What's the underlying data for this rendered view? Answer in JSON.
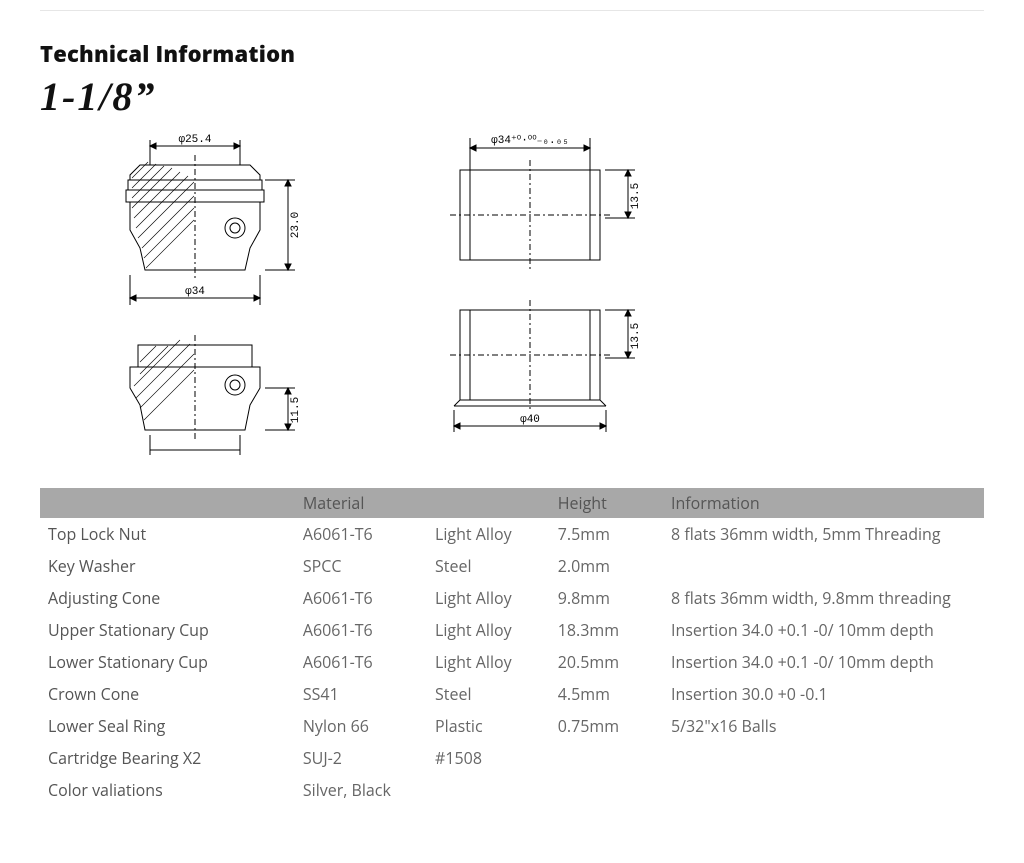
{
  "section_title": "Technical Information",
  "product_size": "1-1/8”",
  "diagram_left": {
    "top_width_label": "φ25.4",
    "right_height_label": "23.0",
    "mid_width_label": "φ34",
    "lower_right_label": "11.5"
  },
  "diagram_right": {
    "top_width_label": "φ34⁺⁰·⁰⁰₋₀.₀₅",
    "upper_right_label": "13.5",
    "lower_right_label": "13.5",
    "bottom_width_label": "φ40"
  },
  "spec_table": {
    "headers": [
      "",
      "Material",
      "",
      "Height",
      "Information"
    ],
    "rows": [
      [
        "Top Lock Nut",
        "A6061-T6",
        "Light Alloy",
        "7.5mm",
        "8 flats 36mm width, 5mm Threading"
      ],
      [
        "Key Washer",
        "SPCC",
        "Steel",
        "2.0mm",
        ""
      ],
      [
        "Adjusting Cone",
        "A6061-T6",
        "Light Alloy",
        "9.8mm",
        "8 flats 36mm width, 9.8mm threading"
      ],
      [
        "Upper Stationary Cup",
        "A6061-T6",
        "Light Alloy",
        "18.3mm",
        "Insertion 34.0 +0.1 -0/ 10mm depth"
      ],
      [
        "Lower Stationary Cup",
        "A6061-T6",
        "Light Alloy",
        "20.5mm",
        "Insertion 34.0 +0.1 -0/ 10mm depth"
      ],
      [
        "Crown Cone",
        "SS41",
        "Steel",
        "4.5mm",
        "Insertion 30.0 +0 -0.1"
      ],
      [
        "Lower Seal Ring",
        "Nylon 66",
        "Plastic",
        "0.75mm",
        "5/32\"x16 Balls"
      ],
      [
        "Cartridge Bearing X2",
        "SUJ-2",
        "#1508",
        "",
        ""
      ],
      [
        "Color valiations",
        "Silver, Black",
        "",
        "",
        ""
      ]
    ],
    "col_widths": [
      "27%",
      "14%",
      "13%",
      "12%",
      "34%"
    ]
  },
  "colors": {
    "rule": "#e6e6e6",
    "header_bg": "#a8a8a8",
    "header_fg": "#555555",
    "body_text": "#666666",
    "stroke": "#000000"
  }
}
